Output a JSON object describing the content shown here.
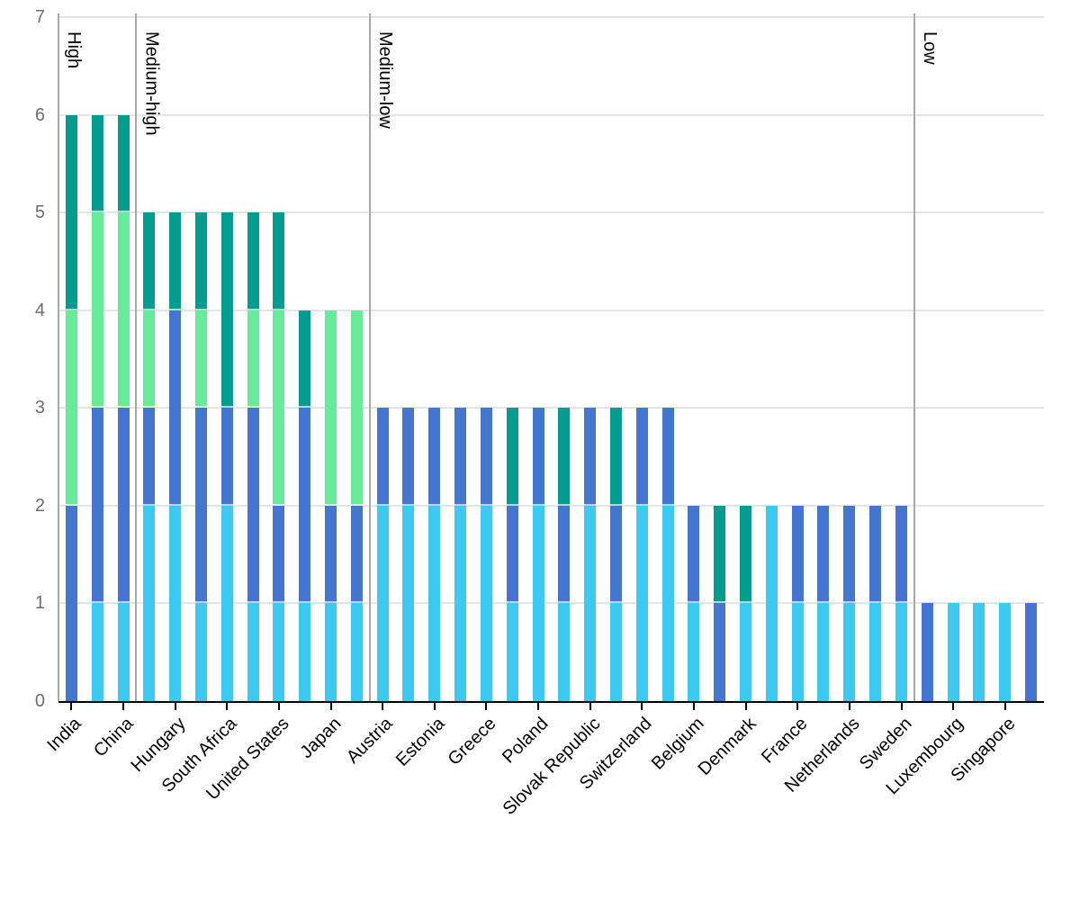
{
  "chart_data": {
    "type": "bar",
    "stacked": true,
    "title": "",
    "xlabel": "",
    "ylabel": "",
    "ylim": [
      0,
      7
    ],
    "yticks": [
      0,
      1,
      2,
      3,
      4,
      5,
      6,
      7
    ],
    "grid": true,
    "legend": "none",
    "bars_per_country": 2,
    "slots_total": 38,
    "segment_colors": {
      "cyan": "#3DC9F1",
      "blue": "#4475D1",
      "green": "#66EB99",
      "teal": "#059C90"
    },
    "style_colors": {
      "divider": "#a8a8a8",
      "gridline": "#e5e5e5",
      "axis": "#000000",
      "y_tick_text": "#6e6e6e",
      "x_tick_text": "#000000"
    },
    "sections": [
      {
        "label": "High",
        "starts_at_slot": 0
      },
      {
        "label": "Medium-high",
        "starts_at_slot": 3
      },
      {
        "label": "Medium-low",
        "starts_at_slot": 12
      },
      {
        "label": "Low",
        "starts_at_slot": 33
      }
    ],
    "countries": [
      {
        "name": "India",
        "bars": [
          [
            [
              "blue",
              2
            ],
            [
              "green",
              2
            ],
            [
              "teal",
              2
            ]
          ],
          [
            [
              "cyan",
              1
            ],
            [
              "blue",
              2
            ],
            [
              "green",
              2
            ],
            [
              "teal",
              1
            ]
          ]
        ]
      },
      {
        "name": "China",
        "bars": [
          [
            [
              "cyan",
              1
            ],
            [
              "blue",
              2
            ],
            [
              "green",
              2
            ],
            [
              "teal",
              1
            ]
          ],
          [
            [
              "cyan",
              2
            ],
            [
              "blue",
              1
            ],
            [
              "green",
              1
            ],
            [
              "teal",
              1
            ]
          ]
        ]
      },
      {
        "name": "Hungary",
        "bars": [
          [
            [
              "cyan",
              2
            ],
            [
              "blue",
              2
            ],
            [
              "teal",
              1
            ]
          ],
          [
            [
              "cyan",
              1
            ],
            [
              "blue",
              2
            ],
            [
              "green",
              1
            ],
            [
              "teal",
              1
            ]
          ]
        ]
      },
      {
        "name": "South Africa",
        "bars": [
          [
            [
              "cyan",
              2
            ],
            [
              "blue",
              1
            ],
            [
              "teal",
              2
            ]
          ],
          [
            [
              "cyan",
              1
            ],
            [
              "blue",
              2
            ],
            [
              "green",
              1
            ],
            [
              "teal",
              1
            ]
          ]
        ]
      },
      {
        "name": "United States",
        "bars": [
          [
            [
              "cyan",
              1
            ],
            [
              "blue",
              1
            ],
            [
              "green",
              2
            ],
            [
              "teal",
              1
            ]
          ],
          [
            [
              "cyan",
              1
            ],
            [
              "blue",
              2
            ],
            [
              "teal",
              1
            ]
          ]
        ]
      },
      {
        "name": "Japan",
        "bars": [
          [
            [
              "cyan",
              1
            ],
            [
              "blue",
              1
            ],
            [
              "green",
              2
            ]
          ],
          [
            [
              "cyan",
              1
            ],
            [
              "blue",
              1
            ],
            [
              "green",
              2
            ]
          ]
        ]
      },
      {
        "name": "Austria",
        "bars": [
          [
            [
              "cyan",
              2
            ],
            [
              "blue",
              1
            ]
          ],
          [
            [
              "cyan",
              2
            ],
            [
              "blue",
              1
            ]
          ]
        ]
      },
      {
        "name": "Estonia",
        "bars": [
          [
            [
              "cyan",
              2
            ],
            [
              "blue",
              1
            ]
          ],
          [
            [
              "cyan",
              2
            ],
            [
              "blue",
              1
            ]
          ]
        ]
      },
      {
        "name": "Greece",
        "bars": [
          [
            [
              "cyan",
              2
            ],
            [
              "blue",
              1
            ]
          ],
          [
            [
              "cyan",
              1
            ],
            [
              "blue",
              1
            ],
            [
              "teal",
              1
            ]
          ]
        ]
      },
      {
        "name": "Poland",
        "bars": [
          [
            [
              "cyan",
              2
            ],
            [
              "blue",
              1
            ]
          ],
          [
            [
              "cyan",
              1
            ],
            [
              "blue",
              1
            ],
            [
              "teal",
              1
            ]
          ]
        ]
      },
      {
        "name": "Slovak Republic",
        "bars": [
          [
            [
              "cyan",
              2
            ],
            [
              "blue",
              1
            ]
          ],
          [
            [
              "cyan",
              1
            ],
            [
              "blue",
              1
            ],
            [
              "teal",
              1
            ]
          ]
        ]
      },
      {
        "name": "Switzerland",
        "bars": [
          [
            [
              "cyan",
              2
            ],
            [
              "blue",
              1
            ]
          ],
          [
            [
              "cyan",
              2
            ],
            [
              "blue",
              1
            ]
          ]
        ]
      },
      {
        "name": "Belgium",
        "bars": [
          [
            [
              "cyan",
              1
            ],
            [
              "blue",
              1
            ]
          ],
          [
            [
              "blue",
              1
            ],
            [
              "teal",
              1
            ]
          ]
        ]
      },
      {
        "name": "Denmark",
        "bars": [
          [
            [
              "cyan",
              1
            ],
            [
              "teal",
              1
            ]
          ],
          [
            [
              "cyan",
              2
            ]
          ]
        ]
      },
      {
        "name": "France",
        "bars": [
          [
            [
              "cyan",
              1
            ],
            [
              "blue",
              1
            ]
          ],
          [
            [
              "cyan",
              1
            ],
            [
              "blue",
              1
            ]
          ]
        ]
      },
      {
        "name": "Netherlands",
        "bars": [
          [
            [
              "cyan",
              1
            ],
            [
              "blue",
              1
            ]
          ],
          [
            [
              "cyan",
              1
            ],
            [
              "blue",
              1
            ]
          ]
        ]
      },
      {
        "name": "Sweden",
        "bars": [
          [
            [
              "cyan",
              1
            ],
            [
              "blue",
              1
            ]
          ],
          [
            [
              "blue",
              1
            ]
          ]
        ]
      },
      {
        "name": "Luxembourg",
        "bars": [
          [
            [
              "cyan",
              1
            ]
          ],
          [
            [
              "cyan",
              1
            ]
          ]
        ]
      },
      {
        "name": "Singapore",
        "bars": [
          [
            [
              "cyan",
              1
            ]
          ],
          [
            [
              "blue",
              1
            ]
          ]
        ]
      }
    ]
  }
}
